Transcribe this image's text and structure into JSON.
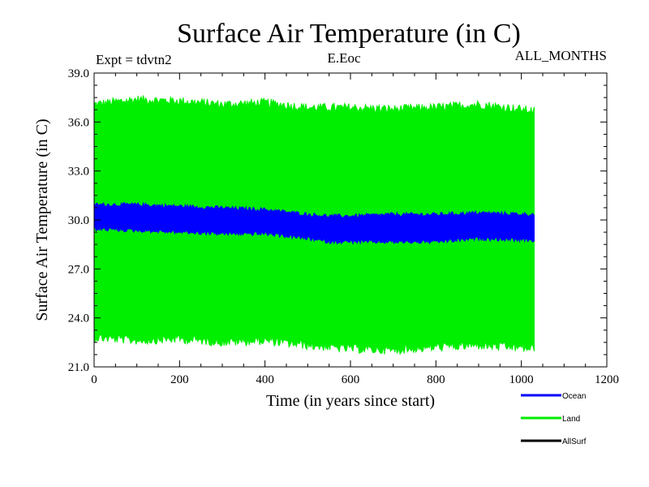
{
  "chart_data": {
    "type": "line",
    "title": "Surface Air Temperature (in C)",
    "header_left": "Expt = tdvtn2",
    "header_center": "E.Eoc",
    "header_right": "ALL_MONTHS",
    "xlabel": "Time (in years since start)",
    "ylabel": "Surface Air Temperature (in C)",
    "xlim": [
      0,
      1200
    ],
    "ylim": [
      21.0,
      39.0
    ],
    "x_ticks": [
      0,
      200,
      400,
      600,
      800,
      1000,
      1200
    ],
    "x_tick_labels": [
      "0",
      "200",
      "400",
      "600",
      "800",
      "1000",
      "1200"
    ],
    "y_ticks": [
      21.0,
      24.0,
      27.0,
      30.0,
      33.0,
      36.0,
      39.0
    ],
    "y_tick_labels": [
      "21.0",
      "24.0",
      "27.0",
      "30.0",
      "33.0",
      "36.0",
      "39.0"
    ],
    "x_end": 1030,
    "series": [
      {
        "name": "Land",
        "color": "#00ee00",
        "envelope_x": [
          0,
          100,
          200,
          300,
          400,
          500,
          600,
          700,
          800,
          900,
          1030
        ],
        "envelope_high": [
          37.0,
          37.3,
          37.2,
          37.0,
          37.1,
          36.8,
          36.8,
          36.7,
          36.8,
          37.0,
          36.6
        ],
        "envelope_low": [
          22.9,
          22.7,
          22.8,
          22.6,
          22.7,
          22.4,
          22.2,
          22.1,
          22.3,
          22.4,
          22.2
        ]
      },
      {
        "name": "Ocean",
        "color": "#0000ff",
        "envelope_x": [
          0,
          100,
          200,
          300,
          400,
          500,
          550,
          600,
          700,
          800,
          900,
          1030
        ],
        "envelope_high": [
          30.9,
          30.9,
          30.8,
          30.7,
          30.6,
          30.3,
          30.2,
          30.2,
          30.3,
          30.3,
          30.4,
          30.3
        ],
        "envelope_low": [
          29.5,
          29.4,
          29.3,
          29.2,
          29.2,
          28.9,
          28.7,
          28.7,
          28.7,
          28.7,
          28.9,
          28.8
        ]
      },
      {
        "name": "AllSurf",
        "color": "#000000",
        "envelope_x": [],
        "envelope_high": [],
        "envelope_low": []
      }
    ],
    "legend_position": "bottom-right"
  }
}
